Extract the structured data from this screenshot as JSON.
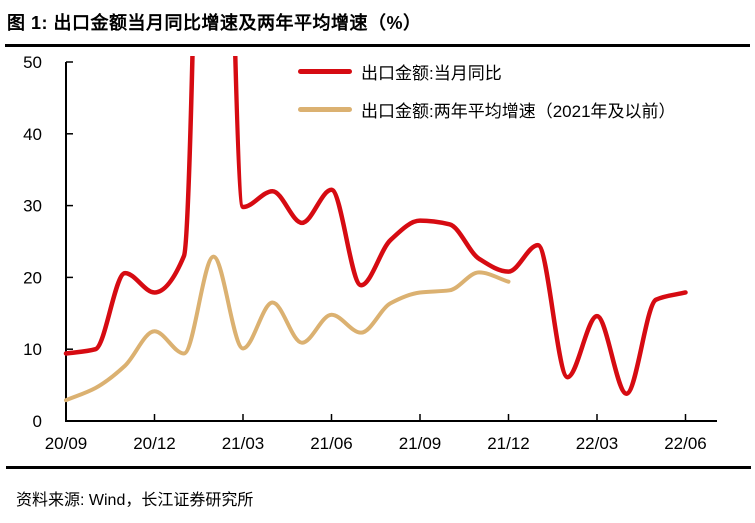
{
  "header": {
    "title": "图 1: 出口金额当月同比增速及两年平均增速（%）"
  },
  "footer": {
    "source": "资料来源: Wind，长江证券研究所"
  },
  "chart_data": {
    "type": "line",
    "title": "出口金额当月同比增速及两年平均增速（%）",
    "xlabel": "",
    "ylabel": "",
    "ylim": [
      0,
      50
    ],
    "y_ticks": [
      0,
      10,
      20,
      30,
      40,
      50
    ],
    "x_tick_labels": [
      "20/09",
      "20/12",
      "21/03",
      "21/06",
      "21/09",
      "21/12",
      "22/03",
      "22/06"
    ],
    "x": [
      "20/09",
      "20/10",
      "20/11",
      "20/12",
      "21/01",
      "21/02",
      "21/03",
      "21/04",
      "21/05",
      "21/06",
      "21/07",
      "21/08",
      "21/09",
      "21/10",
      "21/11",
      "21/12",
      "22/01",
      "22/02",
      "22/03",
      "22/04",
      "22/05",
      "22/06"
    ],
    "grid": false,
    "legend_position": "inside-top",
    "note": "red series spikes off-scale above 50 at 21/02; tan series ends at 21/12",
    "axis_color": "#000000",
    "series": [
      {
        "name": "出口金额:当月同比",
        "color": "#d60b12",
        "line_width": 4.5,
        "values": [
          9.4,
          10.0,
          20.6,
          17.9,
          23.0,
          154.9,
          29.8,
          32.0,
          27.6,
          32.2,
          18.9,
          25.2,
          27.9,
          27.4,
          22.6,
          20.8,
          24.5,
          6.1,
          14.6,
          3.8,
          16.9,
          17.9
        ]
      },
      {
        "name": "出口金额:两年平均增速（2021年及以前）",
        "color": "#dbb171",
        "line_width": 4,
        "values": [
          2.9,
          4.6,
          7.7,
          12.5,
          9.4,
          22.9,
          10.1,
          16.5,
          10.9,
          14.8,
          12.3,
          16.4,
          17.9,
          18.2,
          20.7,
          19.4,
          null,
          null,
          null,
          null,
          null,
          null
        ]
      }
    ]
  }
}
